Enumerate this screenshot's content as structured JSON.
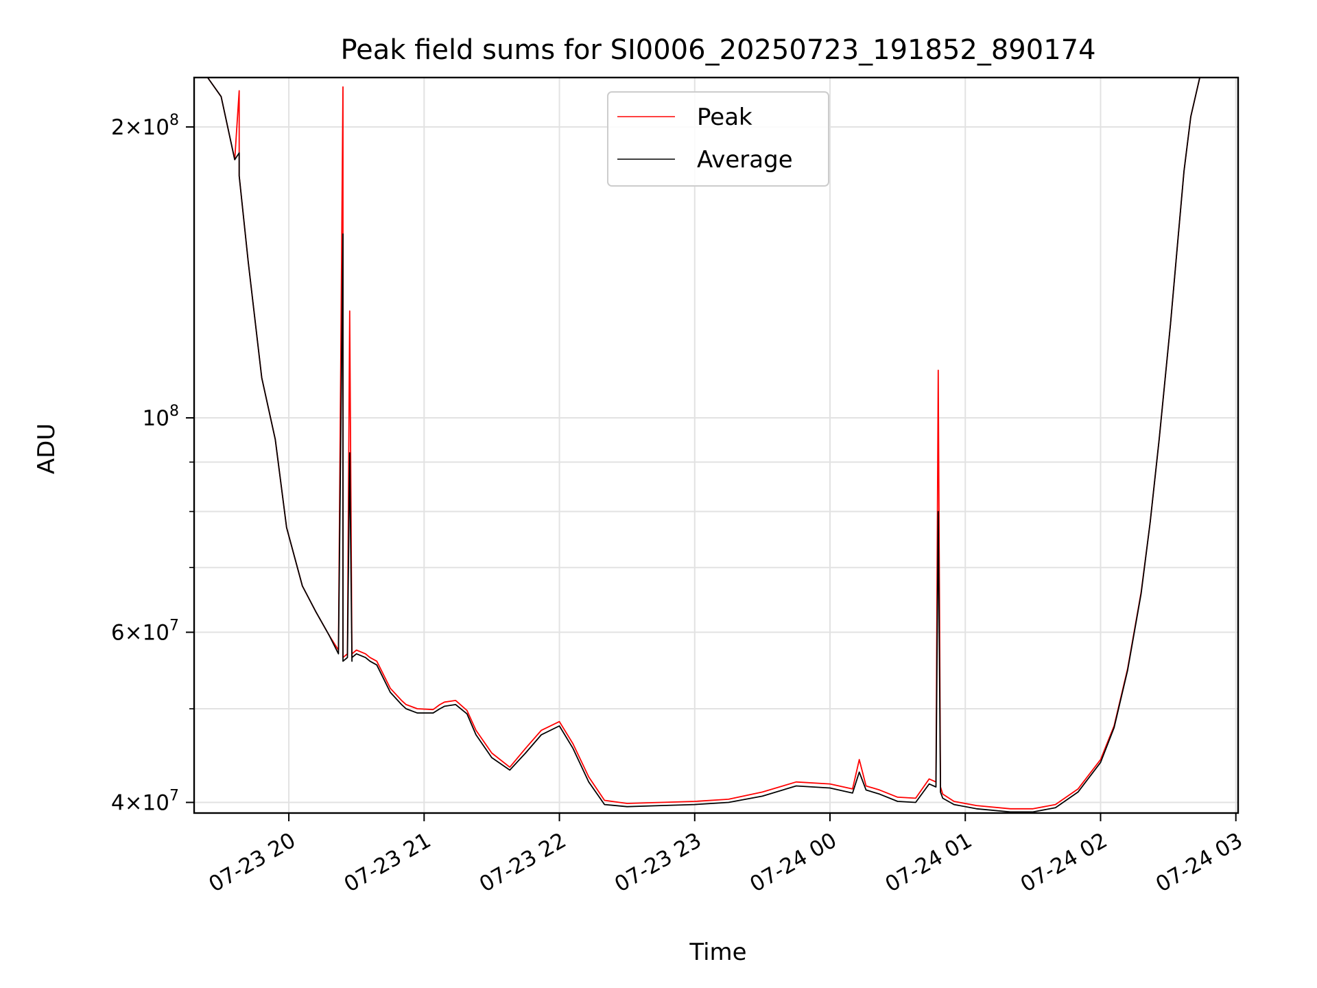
{
  "chart_data": {
    "type": "line",
    "title": "Peak field sums for SI0006_20250723_191852_890174",
    "xlabel": "Time",
    "ylabel": "ADU",
    "yscale": "log",
    "grid": true,
    "legend_placement": "upper center",
    "xlim": [
      "07-23 19:18",
      "07-24 03:01"
    ],
    "ylim": [
      39000000,
      225000000
    ],
    "x_ticks": [
      {
        "value": "07-23 20:00",
        "label": "07-23 20"
      },
      {
        "value": "07-23 21:00",
        "label": "07-23 21"
      },
      {
        "value": "07-23 22:00",
        "label": "07-23 22"
      },
      {
        "value": "07-23 23:00",
        "label": "07-23 23"
      },
      {
        "value": "07-24 00:00",
        "label": "07-24 00"
      },
      {
        "value": "07-24 01:00",
        "label": "07-24 01"
      },
      {
        "value": "07-24 02:00",
        "label": "07-24 02"
      },
      {
        "value": "07-24 03:00",
        "label": "07-24 03"
      }
    ],
    "y_ticks": [
      {
        "value": 40000000,
        "mantissa": "4",
        "exponent": "7"
      },
      {
        "value": 60000000,
        "mantissa": "6",
        "exponent": "7"
      },
      {
        "value": 100000000,
        "mantissa": "",
        "exponent": "8"
      },
      {
        "value": 200000000,
        "mantissa": "2",
        "exponent": "8"
      }
    ],
    "y_minor_ticks": [
      50000000,
      70000000,
      80000000,
      90000000
    ],
    "series": [
      {
        "name": "Peak",
        "color": "#ff0000",
        "x": [
          "07-23 19:18",
          "07-23 19:24",
          "07-23 19:30",
          "07-23 19:36",
          "07-23 19:38",
          "07-23 19:38",
          "07-23 19:42",
          "07-23 19:48",
          "07-23 19:54",
          "07-23 19:59",
          "07-23 20:06",
          "07-23 20:12",
          "07-23 20:18",
          "07-23 20:22",
          "07-23 20:24",
          "07-23 20:24",
          "07-23 20:26",
          "07-23 20:27",
          "07-23 20:28",
          "07-23 20:28",
          "07-23 20:30",
          "07-23 20:34",
          "07-23 20:36",
          "07-23 20:39",
          "07-23 20:45",
          "07-23 20:50",
          "07-23 20:52",
          "07-23 20:57",
          "07-23 21:04",
          "07-23 21:07",
          "07-23 21:09",
          "07-23 21:14",
          "07-23 21:19",
          "07-23 21:23",
          "07-23 21:30",
          "07-23 21:38",
          "07-23 21:45",
          "07-23 21:52",
          "07-23 22:00",
          "07-23 22:06",
          "07-23 22:13",
          "07-23 22:20",
          "07-23 22:30",
          "07-23 22:45",
          "07-23 23:00",
          "07-23 23:15",
          "07-23 23:30",
          "07-23 23:45",
          "07-24 00:00",
          "07-24 00:10",
          "07-24 00:13",
          "07-24 00:16",
          "07-24 00:22",
          "07-24 00:30",
          "07-24 00:38",
          "07-24 00:44",
          "07-24 00:47",
          "07-24 00:48",
          "07-24 00:49",
          "07-24 00:50",
          "07-24 00:55",
          "07-24 01:05",
          "07-24 01:20",
          "07-24 01:30",
          "07-24 01:40",
          "07-24 01:50",
          "07-24 02:00",
          "07-24 02:06",
          "07-24 02:12",
          "07-24 02:18",
          "07-24 02:22",
          "07-24 02:26",
          "07-24 02:31",
          "07-24 02:34",
          "07-24 02:37",
          "07-24 02:40",
          "07-24 02:44",
          "07-24 03:01"
        ],
        "y": [
          225000000,
          225000000,
          215000000,
          185000000,
          218000000,
          178000000,
          145000000,
          110000000,
          95000000,
          77000000,
          67000000,
          63000000,
          59500000,
          57500000,
          220000000,
          56500000,
          57000000,
          129000000,
          56500000,
          57000000,
          57500000,
          57000000,
          56500000,
          56000000,
          52500000,
          51000000,
          50500000,
          50000000,
          49900000,
          50500000,
          50800000,
          51000000,
          49800000,
          47500000,
          45000000,
          43500000,
          45500000,
          47500000,
          48500000,
          46000000,
          42500000,
          40200000,
          39900000,
          40000000,
          40100000,
          40300000,
          41000000,
          42000000,
          41800000,
          41300000,
          44300000,
          41600000,
          41200000,
          40500000,
          40400000,
          42300000,
          42000000,
          112000000,
          41500000,
          40800000,
          40100000,
          39700000,
          39400000,
          39400000,
          39800000,
          41300000,
          44300000,
          48000000,
          55000000,
          66000000,
          78000000,
          95000000,
          125000000,
          150000000,
          180000000,
          205000000,
          225000000,
          225000000
        ]
      },
      {
        "name": "Average",
        "color": "#000000",
        "x": [
          "07-23 19:18",
          "07-23 19:24",
          "07-23 19:30",
          "07-23 19:36",
          "07-23 19:38",
          "07-23 19:38",
          "07-23 19:42",
          "07-23 19:48",
          "07-23 19:54",
          "07-23 19:59",
          "07-23 20:06",
          "07-23 20:12",
          "07-23 20:18",
          "07-23 20:22",
          "07-23 20:24",
          "07-23 20:24",
          "07-23 20:26",
          "07-23 20:27",
          "07-23 20:28",
          "07-23 20:28",
          "07-23 20:30",
          "07-23 20:34",
          "07-23 20:36",
          "07-23 20:39",
          "07-23 20:45",
          "07-23 20:50",
          "07-23 20:52",
          "07-23 20:57",
          "07-23 21:04",
          "07-23 21:07",
          "07-23 21:09",
          "07-23 21:14",
          "07-23 21:19",
          "07-23 21:23",
          "07-23 21:30",
          "07-23 21:38",
          "07-23 21:45",
          "07-23 21:52",
          "07-23 22:00",
          "07-23 22:06",
          "07-23 22:13",
          "07-23 22:20",
          "07-23 22:30",
          "07-23 22:45",
          "07-23 23:00",
          "07-23 23:15",
          "07-23 23:30",
          "07-23 23:45",
          "07-24 00:00",
          "07-24 00:10",
          "07-24 00:13",
          "07-24 00:16",
          "07-24 00:22",
          "07-24 00:30",
          "07-24 00:38",
          "07-24 00:44",
          "07-24 00:47",
          "07-24 00:48",
          "07-24 00:49",
          "07-24 00:50",
          "07-24 00:55",
          "07-24 01:05",
          "07-24 01:20",
          "07-24 01:30",
          "07-24 01:40",
          "07-24 01:50",
          "07-24 02:00",
          "07-24 02:06",
          "07-24 02:12",
          "07-24 02:18",
          "07-24 02:22",
          "07-24 02:26",
          "07-24 02:31",
          "07-24 02:34",
          "07-24 02:37",
          "07-24 02:40",
          "07-24 02:44",
          "07-24 03:01"
        ],
        "y": [
          225000000,
          225000000,
          215000000,
          185000000,
          188000000,
          178000000,
          145000000,
          110000000,
          95000000,
          77000000,
          67000000,
          63000000,
          59500000,
          57000000,
          155000000,
          56000000,
          56500000,
          92000000,
          56000000,
          56500000,
          57000000,
          56500000,
          56000000,
          55500000,
          52000000,
          50500000,
          50000000,
          49500000,
          49500000,
          50000000,
          50300000,
          50500000,
          49400000,
          47000000,
          44500000,
          43200000,
          45000000,
          47000000,
          48000000,
          45500000,
          42000000,
          39800000,
          39600000,
          39700000,
          39800000,
          40000000,
          40600000,
          41600000,
          41400000,
          40900000,
          43000000,
          41200000,
          40800000,
          40100000,
          40000000,
          41800000,
          41500000,
          80000000,
          41000000,
          40400000,
          39800000,
          39400000,
          39100000,
          39100000,
          39500000,
          41000000,
          44000000,
          47800000,
          54800000,
          65800000,
          78000000,
          95000000,
          125000000,
          150000000,
          180000000,
          205000000,
          225000000,
          225000000
        ]
      }
    ]
  }
}
